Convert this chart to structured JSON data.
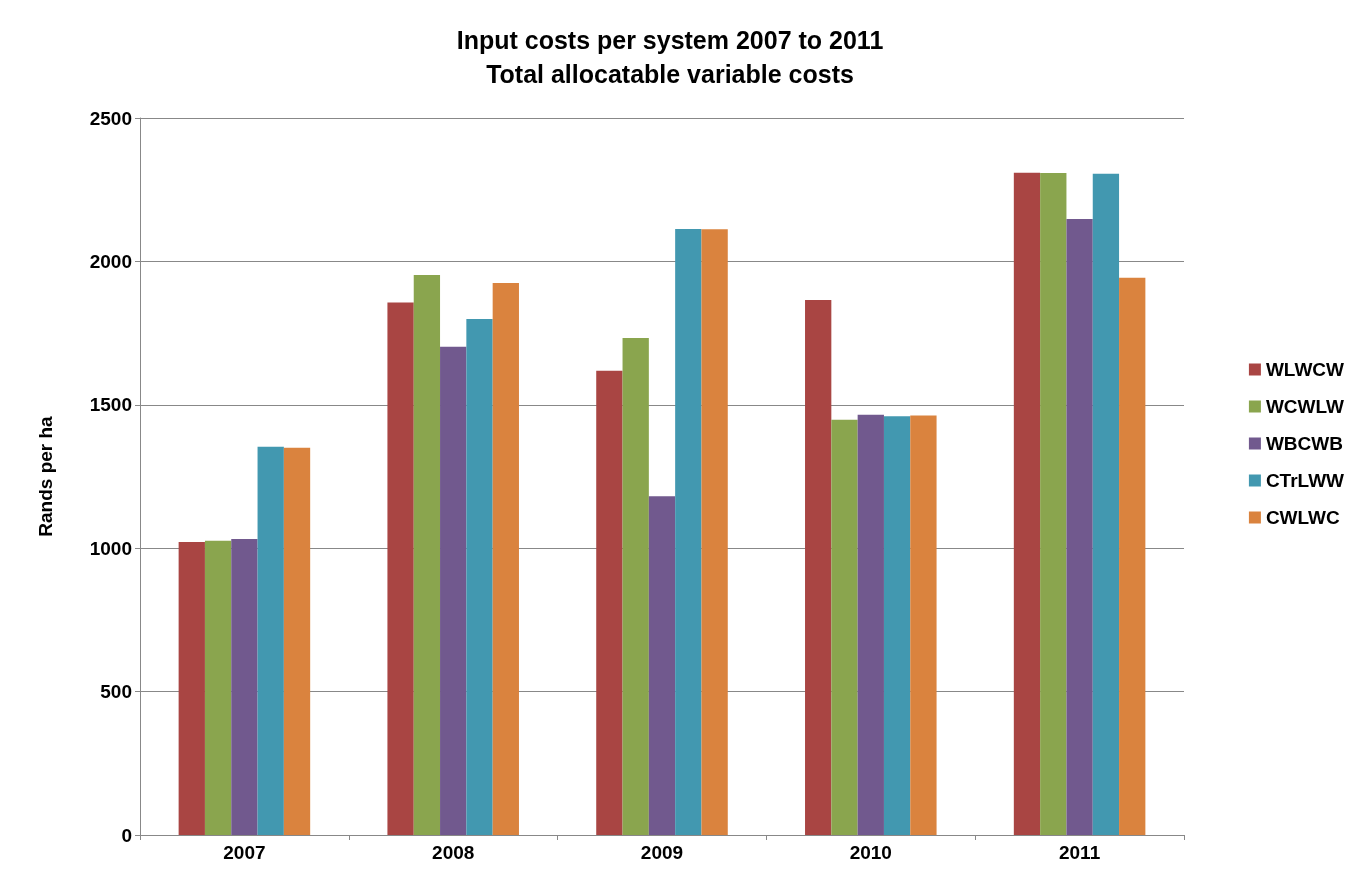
{
  "chart_data": {
    "type": "bar",
    "title": "Input costs per system 2007 to 2011\nTotal allocatable variable costs",
    "ylabel": "Rands per ha",
    "categories": [
      "2007",
      "2008",
      "2009",
      "2010",
      "2011"
    ],
    "series": [
      {
        "name": "WLWCW",
        "color": "#a94543",
        "values": [
          1022,
          1857,
          1619,
          1865,
          2309
        ]
      },
      {
        "name": "WCWLW",
        "color": "#8aa54e",
        "values": [
          1026,
          1953,
          1733,
          1448,
          2308
        ]
      },
      {
        "name": "WBCWB",
        "color": "#71598e",
        "values": [
          1032,
          1702,
          1181,
          1465,
          2148
        ]
      },
      {
        "name": "CTrLWW",
        "color": "#4298b0",
        "values": [
          1354,
          1799,
          2113,
          1460,
          2306
        ]
      },
      {
        "name": "CWLWC",
        "color": "#da833e",
        "values": [
          1350,
          1925,
          2112,
          1463,
          1943
        ]
      }
    ],
    "ylim": [
      0,
      2500
    ],
    "yticks": [
      0,
      500,
      1000,
      1500,
      2000,
      2500
    ],
    "grid": "y",
    "legend": "right"
  }
}
